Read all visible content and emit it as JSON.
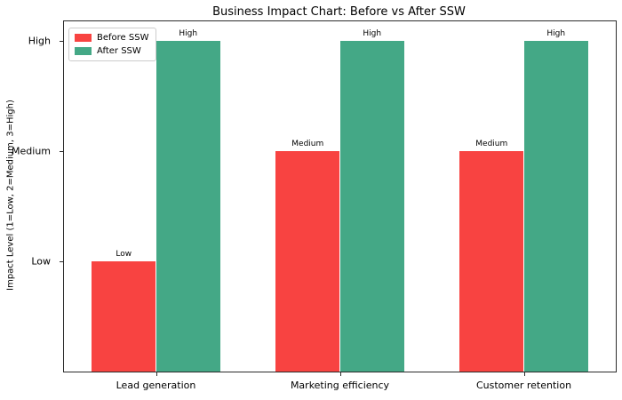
{
  "chart_data": {
    "type": "bar",
    "title": "Business Impact Chart: Before vs After SSW",
    "xlabel": "",
    "ylabel": "Impact Level (1=Low, 2=Medium, 3=High)",
    "categories": [
      "Lead generation",
      "Marketing efficiency",
      "Customer retention"
    ],
    "series": [
      {
        "name": "Before SSW",
        "color": "#F84341",
        "values": [
          1,
          2,
          2
        ],
        "value_labels": [
          "Low",
          "Medium",
          "Medium"
        ]
      },
      {
        "name": "After SSW",
        "color": "#44A886",
        "values": [
          3,
          3,
          3
        ],
        "value_labels": [
          "High",
          "High",
          "High"
        ]
      }
    ],
    "yticks": [
      {
        "value": 1,
        "label": "Low"
      },
      {
        "value": 2,
        "label": "Medium"
      },
      {
        "value": 3,
        "label": "High"
      }
    ],
    "ylim": [
      0,
      3.18
    ],
    "bar_width_fraction": 0.35,
    "grid": false,
    "legend_position": "upper left",
    "frame": "full-box"
  }
}
